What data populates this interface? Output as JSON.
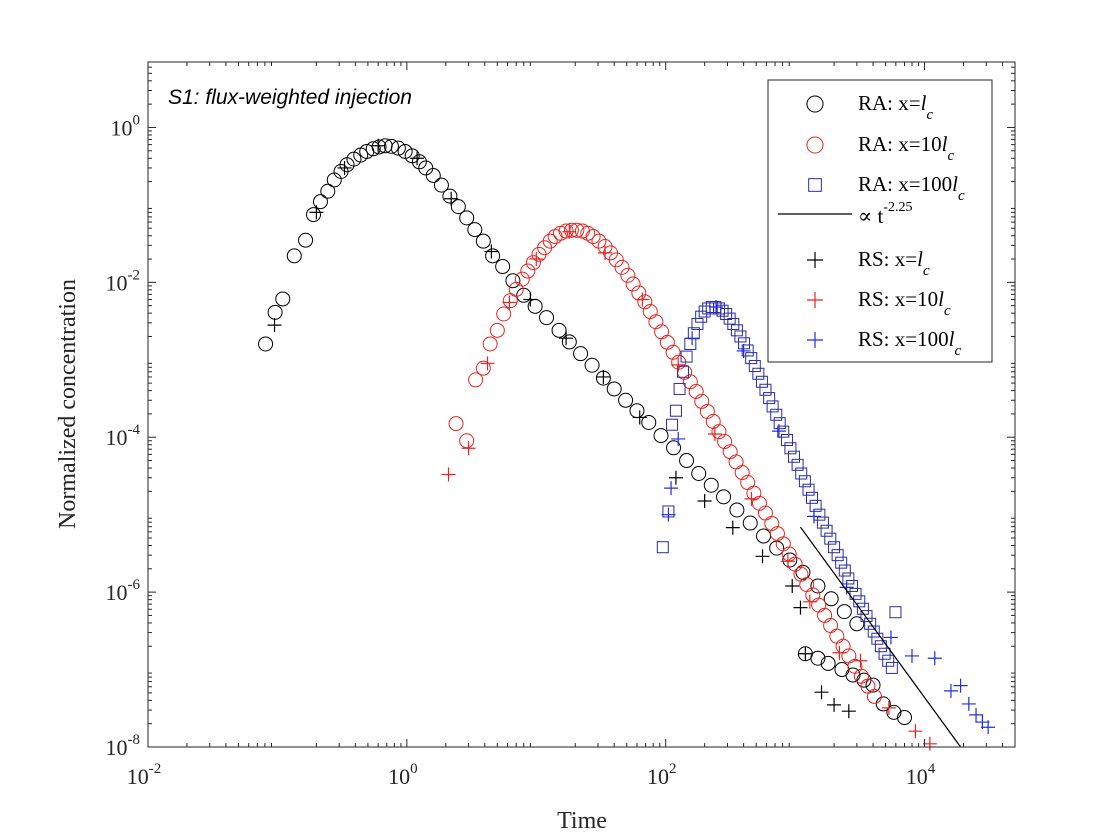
{
  "chart_data": {
    "type": "scatter",
    "title": "",
    "annotation": "S1: flux-weighted injection",
    "xlabel": "Time",
    "ylabel": "Normalized concentration",
    "xscale": "log",
    "yscale": "log",
    "xlim": [
      0.01,
      50000
    ],
    "ylim": [
      1e-08,
      7
    ],
    "grid": false,
    "legend_position": "top-right",
    "x_ticks": [
      {
        "value": 0.01,
        "base": "10",
        "exp": "-2"
      },
      {
        "value": 1,
        "base": "10",
        "exp": "0"
      },
      {
        "value": 100,
        "base": "10",
        "exp": "2"
      },
      {
        "value": 10000,
        "base": "10",
        "exp": "4"
      }
    ],
    "y_ticks": [
      {
        "value": 1,
        "base": "10",
        "exp": "0"
      },
      {
        "value": 0.01,
        "base": "10",
        "exp": "-2"
      },
      {
        "value": 0.0001,
        "base": "10",
        "exp": "-4"
      },
      {
        "value": 1e-06,
        "base": "10",
        "exp": "-6"
      },
      {
        "value": 1e-08,
        "base": "10",
        "exp": "-8"
      }
    ],
    "legend": [
      {
        "prefix": "RA: x=",
        "coef": "",
        "sym": "l",
        "sub": "c",
        "marker": "circle",
        "color": "#000000"
      },
      {
        "prefix": "RA: x=",
        "coef": "10",
        "sym": "l",
        "sub": "c",
        "marker": "circle",
        "color": "#e8241f"
      },
      {
        "prefix": "RA: x=",
        "coef": "100",
        "sym": "l",
        "sub": "c",
        "marker": "square",
        "color": "#2a2aa8"
      },
      {
        "prefix": "∝ t",
        "sup": "-2.25",
        "marker": "line",
        "color": "#000000"
      },
      {
        "prefix": "RS: x=",
        "coef": "",
        "sym": "l",
        "sub": "c",
        "marker": "plus",
        "color": "#000000"
      },
      {
        "prefix": "RS: x=",
        "coef": "10",
        "sym": "l",
        "sub": "c",
        "marker": "plus",
        "color": "#e8241f"
      },
      {
        "prefix": "RS: x=",
        "coef": "100",
        "sym": "l",
        "sub": "c",
        "marker": "plus",
        "color": "#1f2ee0"
      }
    ],
    "series": [
      {
        "name": "RA: x=lc",
        "marker": "circle",
        "color": "#000000",
        "points": [
          [
            0.081,
            0.0016
          ],
          [
            0.096,
            0.0041
          ],
          [
            0.11,
            0.0061
          ],
          [
            0.135,
            0.022
          ],
          [
            0.165,
            0.035
          ],
          [
            0.19,
            0.075
          ],
          [
            0.215,
            0.11
          ],
          [
            0.245,
            0.15
          ],
          [
            0.275,
            0.21
          ],
          [
            0.31,
            0.27
          ],
          [
            0.345,
            0.33
          ],
          [
            0.39,
            0.39
          ],
          [
            0.44,
            0.44
          ],
          [
            0.49,
            0.49
          ],
          [
            0.55,
            0.53
          ],
          [
            0.61,
            0.56
          ],
          [
            0.68,
            0.58
          ],
          [
            0.76,
            0.57
          ],
          [
            0.86,
            0.54
          ],
          [
            0.97,
            0.49
          ],
          [
            1.1,
            0.43
          ],
          [
            1.25,
            0.36
          ],
          [
            1.4,
            0.3
          ],
          [
            1.6,
            0.24
          ],
          [
            1.85,
            0.18
          ],
          [
            2.15,
            0.13
          ],
          [
            2.5,
            0.095
          ],
          [
            2.9,
            0.068
          ],
          [
            3.35,
            0.048
          ],
          [
            3.9,
            0.034
          ],
          [
            4.6,
            0.022
          ],
          [
            5.5,
            0.016
          ],
          [
            6.6,
            0.0105
          ],
          [
            8,
            0.0068
          ],
          [
            9.8,
            0.0049
          ],
          [
            12,
            0.0035
          ],
          [
            15,
            0.0024
          ],
          [
            18,
            0.0017
          ],
          [
            22,
            0.0012
          ],
          [
            27,
            0.00085
          ],
          [
            33,
            0.00058
          ],
          [
            40,
            0.00042
          ],
          [
            49,
            0.0003
          ],
          [
            60,
            0.00022
          ],
          [
            74,
            0.000155
          ],
          [
            92,
            0.000105
          ],
          [
            115,
            7.3e-05
          ],
          [
            145,
            5e-05
          ],
          [
            180,
            3.4e-05
          ],
          [
            225,
            2.4e-05
          ],
          [
            280,
            1.7e-05
          ],
          [
            355,
            1.15e-05
          ],
          [
            450,
            7.8e-06
          ],
          [
            570,
            5.3e-06
          ],
          [
            720,
            3.7e-06
          ],
          [
            910,
            2.6e-06
          ],
          [
            1150,
            1.8e-06
          ],
          [
            1500,
            1.2e-06
          ],
          [
            1900,
            8.2e-07
          ],
          [
            2400,
            5.6e-07
          ],
          [
            3000,
            3.9e-07
          ],
          [
            1200,
            1.6e-07
          ],
          [
            1500,
            1.4e-07
          ],
          [
            1800,
            1.2e-07
          ],
          [
            2300,
            1e-07
          ],
          [
            2800,
            8.5e-08
          ],
          [
            3400,
            7.3e-08
          ],
          [
            4000,
            6.3e-08
          ],
          [
            4800,
            3.6e-08
          ],
          [
            5800,
            2.8e-08
          ],
          [
            7000,
            2.4e-08
          ]
        ]
      },
      {
        "name": "RA: x=10lc",
        "marker": "circle",
        "color": "#e8241f",
        "points": [
          [
            2.4,
            0.00015
          ],
          [
            2.9,
            9e-05
          ],
          [
            3.4,
            0.00055
          ],
          [
            3.9,
            0.00078
          ],
          [
            4.4,
            0.0016
          ],
          [
            5,
            0.0024
          ],
          [
            5.6,
            0.0039
          ],
          [
            6.3,
            0.0058
          ],
          [
            7,
            0.0081
          ],
          [
            7.8,
            0.011
          ],
          [
            8.6,
            0.014
          ],
          [
            9.5,
            0.018
          ],
          [
            10.5,
            0.023
          ],
          [
            11.6,
            0.028
          ],
          [
            12.8,
            0.034
          ],
          [
            14,
            0.039
          ],
          [
            15.4,
            0.043
          ],
          [
            17,
            0.046
          ],
          [
            18.7,
            0.047
          ],
          [
            20.6,
            0.047
          ],
          [
            22.7,
            0.046
          ],
          [
            25,
            0.043
          ],
          [
            27.5,
            0.039
          ],
          [
            30.5,
            0.034
          ],
          [
            34,
            0.029
          ],
          [
            37.5,
            0.024
          ],
          [
            41.5,
            0.0195
          ],
          [
            46,
            0.0156
          ],
          [
            51,
            0.0123
          ],
          [
            56,
            0.0095
          ],
          [
            62,
            0.0073
          ],
          [
            69,
            0.0056
          ],
          [
            76,
            0.0042
          ],
          [
            84,
            0.0031
          ],
          [
            93,
            0.0023
          ],
          [
            103,
            0.00168
          ],
          [
            114,
            0.00125
          ],
          [
            126,
            0.00093
          ],
          [
            140,
            0.00069
          ],
          [
            155,
            0.00052
          ],
          [
            172,
            0.00039
          ],
          [
            190,
            0.00029
          ],
          [
            210,
            0.000215
          ],
          [
            233,
            0.00016
          ],
          [
            258,
            0.000118
          ],
          [
            285,
            8.8e-05
          ],
          [
            315,
            6.5e-05
          ],
          [
            350,
            4.8e-05
          ],
          [
            390,
            3.5e-05
          ],
          [
            430,
            2.6e-05
          ],
          [
            480,
            1.9e-05
          ],
          [
            530,
            1.4e-05
          ],
          [
            590,
            1.05e-05
          ],
          [
            660,
            7.7e-06
          ],
          [
            730,
            5.7e-06
          ],
          [
            810,
            4.2e-06
          ],
          [
            900,
            3.1e-06
          ],
          [
            1000,
            2.3e-06
          ],
          [
            1110,
            1.7e-06
          ],
          [
            1230,
            1.25e-06
          ],
          [
            1370,
            9.2e-07
          ],
          [
            1520,
            6.8e-07
          ],
          [
            1690,
            5e-07
          ],
          [
            1880,
            3.7e-07
          ],
          [
            2100,
            2.7e-07
          ],
          [
            2350,
            2e-07
          ],
          [
            2600,
            1.5e-07
          ],
          [
            2900,
            1.1e-07
          ],
          [
            3250,
            8.2e-08
          ],
          [
            3650,
            6.1e-08
          ],
          [
            4100,
            4.5e-08
          ]
        ]
      },
      {
        "name": "RA: x=100lc",
        "marker": "square",
        "color": "#2a2aa8",
        "points": [
          [
            95,
            3.8e-06
          ],
          [
            105,
            1.1e-05
          ],
          [
            112,
            0.000145
          ],
          [
            120,
            0.00022
          ],
          [
            128,
            0.00042
          ],
          [
            136,
            0.0007
          ],
          [
            145,
            0.0011
          ],
          [
            155,
            0.0016
          ],
          [
            165,
            0.0022
          ],
          [
            176,
            0.0029
          ],
          [
            188,
            0.0036
          ],
          [
            200,
            0.0042
          ],
          [
            213,
            0.0046
          ],
          [
            227,
            0.0048
          ],
          [
            242,
            0.0048
          ],
          [
            258,
            0.0046
          ],
          [
            275,
            0.0043
          ],
          [
            293,
            0.0039
          ],
          [
            312,
            0.0034
          ],
          [
            333,
            0.0029
          ],
          [
            355,
            0.0024
          ],
          [
            378,
            0.002
          ],
          [
            403,
            0.00163
          ],
          [
            430,
            0.00132
          ],
          [
            458,
            0.00105
          ],
          [
            488,
            0.00083
          ],
          [
            520,
            0.00066
          ],
          [
            554,
            0.00052
          ],
          [
            590,
            0.00041
          ],
          [
            630,
            0.00032
          ],
          [
            670,
            0.00025
          ],
          [
            715,
            0.000195
          ],
          [
            760,
            0.000152
          ],
          [
            810,
            0.000118
          ],
          [
            865,
            9.2e-05
          ],
          [
            920,
            7.2e-05
          ],
          [
            980,
            5.6e-05
          ],
          [
            1045,
            4.4e-05
          ],
          [
            1115,
            3.4e-05
          ],
          [
            1190,
            2.7e-05
          ],
          [
            1270,
            2.1e-05
          ],
          [
            1350,
            1.65e-05
          ],
          [
            1440,
            1.3e-05
          ],
          [
            1540,
            1e-05
          ],
          [
            1640,
            7.9e-06
          ],
          [
            1750,
            6.2e-06
          ],
          [
            1870,
            4.9e-06
          ],
          [
            2000,
            3.8e-06
          ],
          [
            2130,
            3e-06
          ],
          [
            2270,
            2.4e-06
          ],
          [
            2420,
            1.9e-06
          ],
          [
            2580,
            1.5e-06
          ],
          [
            2750,
            1.2e-06
          ],
          [
            2930,
            9.5e-07
          ],
          [
            3130,
            7.6e-07
          ],
          [
            3340,
            6.1e-07
          ],
          [
            3560,
            4.9e-07
          ],
          [
            3800,
            3.9e-07
          ],
          [
            4050,
            3.1e-07
          ],
          [
            4320,
            2.5e-07
          ],
          [
            4600,
            2e-07
          ],
          [
            4910,
            1.6e-07
          ],
          [
            5240,
            1.3e-07
          ],
          [
            5590,
            1.05e-07
          ],
          [
            5960,
            5.5e-07
          ]
        ]
      },
      {
        "name": "RS: x=lc",
        "marker": "plus",
        "color": "#000000",
        "points": [
          [
            0.095,
            0.0028
          ],
          [
            0.2,
            0.08
          ],
          [
            0.33,
            0.3
          ],
          [
            0.6,
            0.58
          ],
          [
            1.2,
            0.4
          ],
          [
            2.2,
            0.12
          ],
          [
            4.5,
            0.025
          ],
          [
            9,
            0.006
          ],
          [
            17,
            0.0019
          ],
          [
            33,
            0.0006
          ],
          [
            63,
            0.00018
          ],
          [
            120,
            3e-05
          ],
          [
            200,
            1.5e-05
          ],
          [
            330,
            6.8e-06
          ],
          [
            560,
            2.9e-06
          ],
          [
            950,
            1.2e-06
          ],
          [
            1100,
            6.3e-07
          ],
          [
            1200,
            1.6e-07
          ],
          [
            1600,
            5.1e-08
          ],
          [
            2000,
            3.5e-08
          ],
          [
            2600,
            2.9e-08
          ]
        ]
      },
      {
        "name": "RS: x=10lc",
        "marker": "plus",
        "color": "#e8241f",
        "points": [
          [
            2.1,
            3.3e-05
          ],
          [
            3,
            7.2e-05
          ],
          [
            4.2,
            0.0009
          ],
          [
            6.2,
            0.0055
          ],
          [
            10,
            0.02
          ],
          [
            18,
            0.045
          ],
          [
            34,
            0.024
          ],
          [
            66,
            0.006
          ],
          [
            125,
            0.00086
          ],
          [
            240,
            0.00011
          ],
          [
            460,
            1.6e-05
          ],
          [
            880,
            2.5e-06
          ],
          [
            1300,
            7.5e-07
          ],
          [
            2200,
            1.65e-07
          ],
          [
            3200,
            1.3e-07
          ],
          [
            5300,
            3.2e-08
          ],
          [
            8500,
            1.6e-08
          ],
          [
            11000,
            1.1e-08
          ]
        ]
      },
      {
        "name": "RS: x=100lc",
        "marker": "plus",
        "color": "#1f2ee0",
        "points": [
          [
            105,
            1e-05
          ],
          [
            110,
            2.2e-05
          ],
          [
            125,
            9.5e-05
          ],
          [
            160,
            0.0019
          ],
          [
            245,
            0.0048
          ],
          [
            400,
            0.0013
          ],
          [
            750,
            0.00012
          ],
          [
            1400,
            9.5e-06
          ],
          [
            2500,
            1.15e-06
          ],
          [
            5500,
            2.6e-07
          ],
          [
            8000,
            1.5e-07
          ],
          [
            12000,
            1.4e-07
          ],
          [
            16000,
            5.3e-08
          ],
          [
            19000,
            6.2e-08
          ],
          [
            22000,
            3.6e-08
          ],
          [
            25000,
            2.6e-08
          ],
          [
            28000,
            2.1e-08
          ],
          [
            31000,
            1.8e-08
          ]
        ]
      }
    ],
    "reference_line": {
      "name": "∝ t^-2.25",
      "slope": -2.25,
      "x": [
        1100,
        19000
      ],
      "y": [
        6.9e-06,
        1e-08
      ],
      "color": "#000000"
    }
  }
}
